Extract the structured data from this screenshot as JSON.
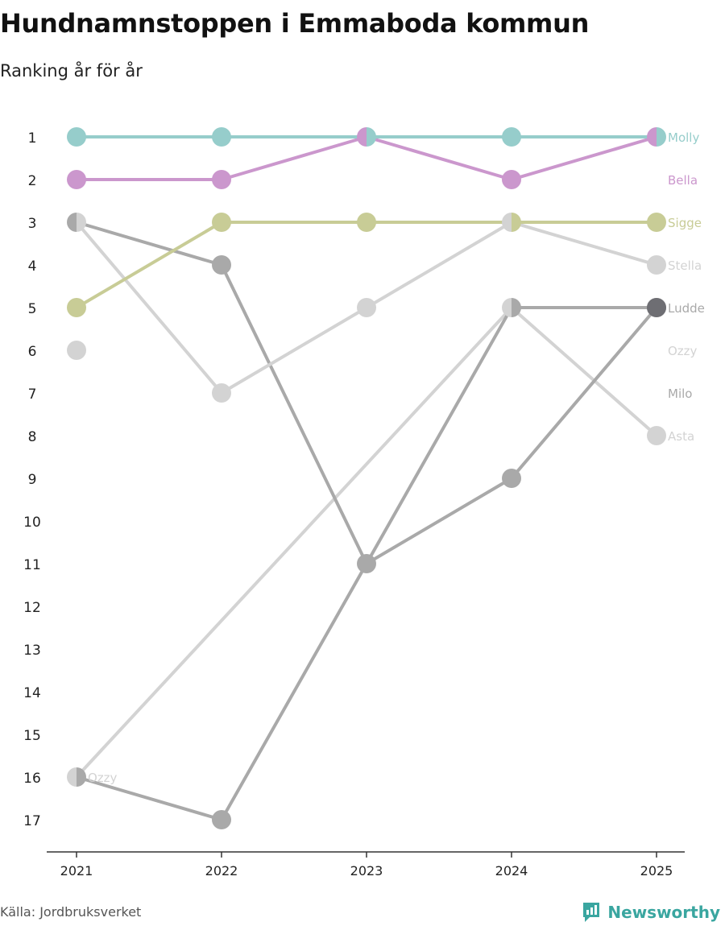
{
  "title": "Hundnamnstoppen i Emmaboda kommun",
  "subtitle": "Ranking år för år",
  "source": "Källa: Jordbruksverket",
  "brand": "Newsworthy",
  "chart_data": {
    "type": "bump",
    "x": [
      "2021",
      "2022",
      "2023",
      "2024",
      "2025"
    ],
    "y_ticks": [
      "1",
      "2",
      "3",
      "4",
      "5",
      "6",
      "7",
      "8",
      "9",
      "10",
      "11",
      "12",
      "13",
      "14",
      "15",
      "16",
      "17"
    ],
    "ylim": [
      1,
      17
    ],
    "series": [
      {
        "name": "Molly",
        "color": "#96cdcb",
        "ranks": [
          1,
          1,
          1,
          1,
          1
        ]
      },
      {
        "name": "Bella",
        "color": "#cb97cd",
        "ranks": [
          2,
          2,
          1,
          2,
          1
        ]
      },
      {
        "name": "Sigge",
        "color": "#c8cc96",
        "ranks": [
          5,
          3,
          3,
          3,
          3
        ]
      },
      {
        "name": "Stella",
        "color": "#d3d3d3",
        "ranks": [
          3,
          7,
          5,
          3,
          4
        ]
      },
      {
        "name": "Ludde",
        "color": "#a9a9a9",
        "ranks": [
          3,
          4,
          11,
          5,
          5
        ]
      },
      {
        "name": "Ozzy",
        "color": "#d3d3d3",
        "ranks": [
          6,
          null,
          null,
          null,
          null
        ]
      },
      {
        "name": "Milo",
        "color": "#a9a9a9",
        "ranks": [
          16,
          17,
          11,
          9,
          5
        ]
      },
      {
        "name": "Asta",
        "color": "#d3d3d3",
        "ranks": [
          16,
          null,
          null,
          5,
          8
        ]
      }
    ],
    "labels": [
      {
        "text": "Molly",
        "rank": 1,
        "year_index": 4,
        "color": "#96cdcb"
      },
      {
        "text": "Bella",
        "rank": 2,
        "year_index": 4,
        "color": "#cb97cd"
      },
      {
        "text": "Sigge",
        "rank": 3,
        "year_index": 4,
        "color": "#c8cc96"
      },
      {
        "text": "Stella",
        "rank": 4,
        "year_index": 4,
        "color": "#d3d3d3"
      },
      {
        "text": "Ludde",
        "rank": 5,
        "year_index": 4,
        "color": "#a9a9a9"
      },
      {
        "text": "Ozzy",
        "rank": 6,
        "year_index": 4,
        "color": "#d3d3d3"
      },
      {
        "text": "Milo",
        "rank": 7,
        "year_index": 4,
        "color": "#a9a9a9"
      },
      {
        "text": "Asta",
        "rank": 8,
        "year_index": 4,
        "color": "#d3d3d3"
      },
      {
        "text": "Ozzy",
        "rank": 16,
        "year_index": 0,
        "color": "#d3d3d3"
      }
    ],
    "final_markers": [
      {
        "name": "Ludde",
        "rank": 5,
        "year_index": 4,
        "color": "#6e6e73"
      }
    ]
  }
}
